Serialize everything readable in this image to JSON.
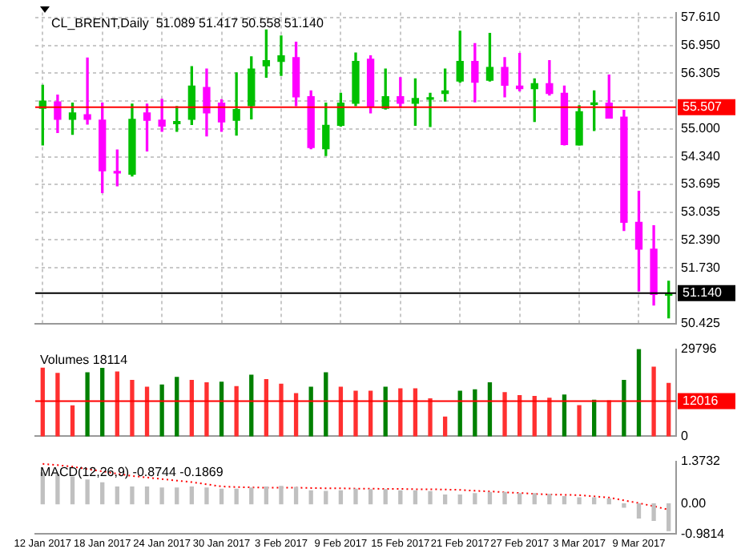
{
  "chart_data": [
    {
      "type": "candlestick",
      "title": "CL_BRENT,Daily  51.089 51.417 50.558 51.140",
      "categories": [
        null,
        null,
        null,
        null,
        null,
        null,
        null,
        null,
        null,
        null,
        null,
        null,
        null,
        null,
        null,
        null,
        null,
        null,
        null,
        null,
        null,
        null,
        null,
        null,
        null,
        null,
        null,
        null,
        null,
        null,
        null,
        null,
        null,
        null,
        null,
        null,
        null,
        null,
        null,
        null,
        null,
        null,
        null
      ],
      "ohlc": [
        [
          55.48,
          56.02,
          54.62,
          55.65
        ],
        [
          55.63,
          55.79,
          54.91,
          55.22
        ],
        [
          55.22,
          55.6,
          54.87,
          55.37
        ],
        [
          55.33,
          56.66,
          55.11,
          55.22
        ],
        [
          55.2,
          55.6,
          53.5,
          54.01
        ],
        [
          53.99,
          54.5,
          53.66,
          53.96
        ],
        [
          53.93,
          55.58,
          53.89,
          55.22
        ],
        [
          55.37,
          55.58,
          54.48,
          55.2
        ],
        [
          55.2,
          55.69,
          54.94,
          55.06
        ],
        [
          55.12,
          55.52,
          54.94,
          55.17
        ],
        [
          55.22,
          56.46,
          55.1,
          56.0
        ],
        [
          55.97,
          56.4,
          54.83,
          55.37
        ],
        [
          55.6,
          55.68,
          54.94,
          55.16
        ],
        [
          55.2,
          56.31,
          54.85,
          55.45
        ],
        [
          55.54,
          56.69,
          55.23,
          56.4
        ],
        [
          56.48,
          57.32,
          56.21,
          56.6
        ],
        [
          56.58,
          57.18,
          56.25,
          56.71
        ],
        [
          56.67,
          57.03,
          55.54,
          55.75
        ],
        [
          55.75,
          55.89,
          54.53,
          54.56
        ],
        [
          54.53,
          55.6,
          54.37,
          55.08
        ],
        [
          55.08,
          55.83,
          55.06,
          55.6
        ],
        [
          55.6,
          56.78,
          55.54,
          56.58
        ],
        [
          56.63,
          56.71,
          55.37,
          55.52
        ],
        [
          55.48,
          56.4,
          55.46,
          55.75
        ],
        [
          55.75,
          56.2,
          55.5,
          55.6
        ],
        [
          55.6,
          56.17,
          55.08,
          55.71
        ],
        [
          55.69,
          55.83,
          55.05,
          55.71
        ],
        [
          55.83,
          56.4,
          55.65,
          55.89
        ],
        [
          56.12,
          57.29,
          56.09,
          56.58
        ],
        [
          56.58,
          57.0,
          55.63,
          56.09
        ],
        [
          56.14,
          57.24,
          56.12,
          56.44
        ],
        [
          56.44,
          56.67,
          55.75,
          56.02
        ],
        [
          56.0,
          56.77,
          55.89,
          55.94
        ],
        [
          55.94,
          56.17,
          55.17,
          56.06
        ],
        [
          56.06,
          56.6,
          55.79,
          55.83
        ],
        [
          55.83,
          56.0,
          54.62,
          54.63
        ],
        [
          54.62,
          55.54,
          54.62,
          55.4
        ],
        [
          55.57,
          55.89,
          54.96,
          55.6
        ],
        [
          55.6,
          56.26,
          55.25,
          55.25
        ],
        [
          55.27,
          55.43,
          52.61,
          52.8
        ],
        [
          52.8,
          53.53,
          51.19,
          52.17
        ],
        [
          52.17,
          52.72,
          50.86,
          51.11
        ],
        [
          51.089,
          51.417,
          50.558,
          51.14
        ]
      ],
      "colors": [
        "#00c000",
        "#ff00ff",
        "#00c000",
        "#ff00ff",
        "#ff00ff",
        "#ff00ff",
        "#00c000",
        "#ff00ff",
        "#ff00ff",
        "#00c000",
        "#00c000",
        "#ff00ff",
        "#ff00ff",
        "#00c000",
        "#00c000",
        "#00c000",
        "#00c000",
        "#ff00ff",
        "#ff00ff",
        "#00c000",
        "#00c000",
        "#00c000",
        "#ff00ff",
        "#00c000",
        "#ff00ff",
        "#00c000",
        "#00c000",
        "#00c000",
        "#00c000",
        "#ff00ff",
        "#00c000",
        "#ff00ff",
        "#ff00ff",
        "#00c000",
        "#ff00ff",
        "#ff00ff",
        "#00c000",
        "#00c000",
        "#ff00ff",
        "#ff00ff",
        "#ff00ff",
        "#ff00ff",
        "#00c000"
      ],
      "ylim": [
        50.41,
        57.73
      ],
      "yticks": [
        {
          "value": 57.61,
          "label": "57.610"
        },
        {
          "value": 56.95,
          "label": "56.950"
        },
        {
          "value": 56.305,
          "label": "56.305"
        },
        {
          "value": 55.645,
          "label": null
        },
        {
          "value": 55.0,
          "label": "55.000"
        },
        {
          "value": 54.34,
          "label": "54.340"
        },
        {
          "value": 53.695,
          "label": "53.695"
        },
        {
          "value": 53.035,
          "label": "53.035"
        },
        {
          "value": 52.39,
          "label": "52.390"
        },
        {
          "value": 51.73,
          "label": "51.730"
        },
        {
          "value": 50.425,
          "label": "50.425"
        }
      ],
      "ref_lines": [
        {
          "axis": "y",
          "value": 55.507,
          "label": "55.507",
          "color": "#ff0000"
        },
        {
          "axis": "y",
          "value": 51.14,
          "label": "51.140",
          "color": "#000000"
        }
      ],
      "grid": true,
      "tick_labels": "y"
    },
    {
      "type": "bar",
      "title": "Volumes 18114",
      "categories": [
        null,
        null,
        null,
        null,
        null,
        null,
        null,
        null,
        null,
        null,
        null,
        null,
        null,
        null,
        null,
        null,
        null,
        null,
        null,
        null,
        null,
        null,
        null,
        null,
        null,
        null,
        null,
        null,
        null,
        null,
        null,
        null,
        null,
        null,
        null,
        null,
        null,
        null,
        null,
        null,
        null,
        null,
        null
      ],
      "values": [
        23300,
        21500,
        10400,
        21700,
        23200,
        22000,
        19100,
        16800,
        17500,
        20100,
        19100,
        18300,
        18500,
        17000,
        20900,
        19400,
        17800,
        14600,
        16800,
        21700,
        16800,
        15400,
        15400,
        16800,
        16200,
        16200,
        12800,
        6600,
        15400,
        15900,
        18300,
        14900,
        13900,
        13600,
        13000,
        14100,
        10500,
        12300,
        12100,
        19100,
        29700,
        23600,
        18100
      ],
      "colors": [
        "#ff3030",
        "#ff3030",
        "#ff3030",
        "#008000",
        "#008000",
        "#ff3030",
        "#ff3030",
        "#ff3030",
        "#008000",
        "#008000",
        "#ff3030",
        "#ff3030",
        "#008000",
        "#ff3030",
        "#008000",
        "#ff3030",
        "#ff3030",
        "#ff3030",
        "#008000",
        "#008000",
        "#ff3030",
        "#ff3030",
        "#ff3030",
        "#008000",
        "#ff3030",
        "#ff3030",
        "#ff3030",
        "#ff3030",
        "#008000",
        "#008000",
        "#008000",
        "#ff3030",
        "#ff3030",
        "#ff3030",
        "#ff3030",
        "#008000",
        "#ff3030",
        "#008000",
        "#ff3030",
        "#008000",
        "#008000",
        "#ff3030",
        "#ff3030"
      ],
      "ylim": [
        0,
        29796
      ],
      "yticks": [
        29796,
        0
      ],
      "ref_lines": [
        {
          "axis": "y",
          "value": 12016,
          "label": "12016",
          "color": "#ff0000"
        }
      ],
      "tick_labels": "y"
    },
    {
      "type": "bar",
      "title": "MACD(12,26,9) -0.8744 -0.1869",
      "categories": [
        "12 Jan 2017",
        null,
        null,
        null,
        "18 Jan 2017",
        null,
        null,
        null,
        "24 Jan 2017",
        null,
        null,
        null,
        "30 Jan 2017",
        null,
        null,
        null,
        "3 Feb 2017",
        null,
        null,
        null,
        "9 Feb 2017",
        null,
        null,
        null,
        "15 Feb 2017",
        null,
        null,
        null,
        "21 Feb 2017",
        null,
        null,
        null,
        "27 Feb 2017",
        null,
        null,
        null,
        "3 Mar 2017",
        null,
        null,
        null,
        "9 Mar 2017",
        null,
        null
      ],
      "series": [
        {
          "color": "#c0c0c0",
          "values": [
            1.0,
            0.95,
            0.86,
            0.77,
            0.68,
            0.54,
            0.54,
            0.54,
            0.51,
            0.51,
            0.54,
            0.51,
            0.47,
            0.47,
            0.51,
            0.54,
            0.56,
            0.53,
            0.42,
            0.4,
            0.42,
            0.47,
            0.46,
            0.46,
            0.42,
            0.42,
            0.39,
            0.28,
            0.28,
            0.33,
            0.37,
            0.37,
            0.33,
            0.33,
            0.3,
            0.23,
            0.19,
            0.19,
            0.16,
            -0.11,
            -0.46,
            -0.54,
            -0.87
          ]
        },
        {
          "type": "line",
          "color": "#ff0000",
          "line_style": "dotted",
          "values": [
            1.29,
            1.25,
            1.2,
            1.12,
            1.05,
            0.97,
            0.9,
            0.85,
            0.8,
            0.75,
            0.7,
            0.63,
            0.56,
            0.54,
            0.53,
            0.52,
            0.52,
            0.52,
            0.51,
            0.5,
            0.5,
            0.49,
            0.49,
            0.48,
            0.48,
            0.47,
            0.47,
            0.46,
            0.45,
            0.42,
            0.4,
            0.37,
            0.35,
            0.32,
            0.3,
            0.29,
            0.28,
            0.24,
            0.2,
            0.11,
            0.02,
            -0.08,
            -0.19
          ]
        }
      ],
      "ylim": [
        -0.9814,
        1.3732
      ],
      "yticks": [
        1.3732,
        {
          "value": 0,
          "label": "0.00"
        },
        -0.9814
      ]
    }
  ]
}
